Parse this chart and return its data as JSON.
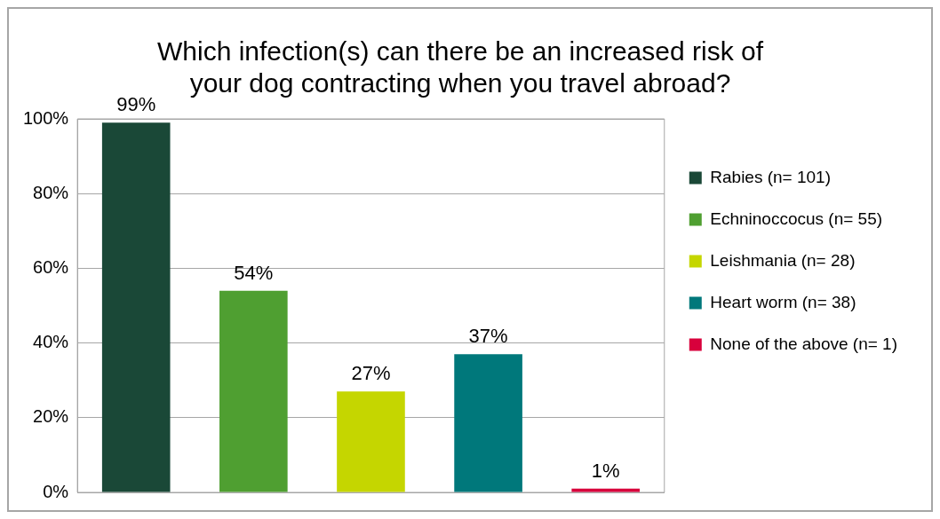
{
  "chart_data": {
    "type": "bar",
    "title": "Which infection(s) can there be an increased risk of your dog contracting when you travel abroad?",
    "categories": [
      null,
      null,
      null,
      null,
      null
    ],
    "series": [
      {
        "name": "Rabies (n= 101)",
        "color": "#1a4837",
        "values": [
          99,
          null,
          null,
          null,
          null
        ],
        "value_labels": [
          "99%",
          null,
          null,
          null,
          null
        ]
      },
      {
        "name": "Echninoccocus (n= 55)",
        "color": "#4f9f31",
        "values": [
          null,
          54,
          null,
          null,
          null
        ],
        "value_labels": [
          null,
          "54%",
          null,
          null,
          null
        ]
      },
      {
        "name": "Leishmania (n= 28)",
        "color": "#c5d600",
        "values": [
          null,
          null,
          27,
          null,
          null
        ],
        "value_labels": [
          null,
          null,
          "27%",
          null,
          null
        ]
      },
      {
        "name": "Heart worm (n= 38)",
        "color": "#00787b",
        "values": [
          null,
          null,
          null,
          37,
          null
        ],
        "value_labels": [
          null,
          null,
          null,
          "37%",
          null
        ]
      },
      {
        "name": "None of the above (n= 1)",
        "color": "#d8003c",
        "values": [
          null,
          null,
          null,
          null,
          1
        ],
        "value_labels": [
          null,
          null,
          null,
          null,
          "1%"
        ]
      }
    ],
    "ylim": [
      0,
      100
    ],
    "yticks": [
      {
        "value": 0,
        "label": "0%"
      },
      {
        "value": 20,
        "label": "20%"
      },
      {
        "value": 40,
        "label": "40%"
      },
      {
        "value": 60,
        "label": "60%"
      },
      {
        "value": 80,
        "label": "80%"
      },
      {
        "value": 100,
        "label": "100%"
      }
    ],
    "grid": "y",
    "legend": "right"
  }
}
